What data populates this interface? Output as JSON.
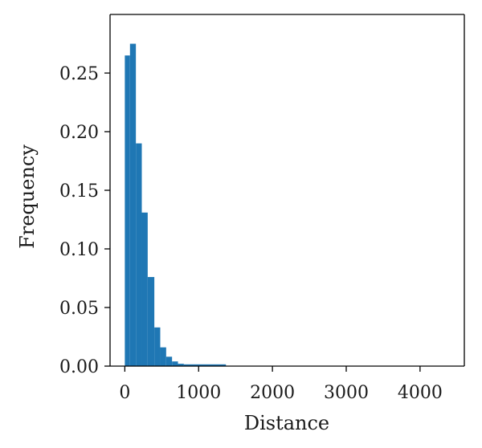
{
  "chart_data": {
    "type": "bar",
    "xlabel": "Distance",
    "ylabel": "Frequency",
    "xlim": [
      -200,
      4600
    ],
    "ylim": [
      0,
      0.3
    ],
    "x_ticks": [
      0,
      1000,
      2000,
      3000,
      4000
    ],
    "x_tick_labels": [
      "0",
      "1000",
      "2000",
      "3000",
      "4000"
    ],
    "y_ticks": [
      0.0,
      0.05,
      0.1,
      0.15,
      0.2,
      0.25
    ],
    "y_tick_labels": [
      "0.00",
      "0.05",
      "0.10",
      "0.15",
      "0.20",
      "0.25"
    ],
    "bar_color": "#1f77b4",
    "grid": false,
    "bins": [
      {
        "start": 0,
        "end": 70,
        "value": 0.265
      },
      {
        "start": 70,
        "end": 150,
        "value": 0.275
      },
      {
        "start": 150,
        "end": 230,
        "value": 0.19
      },
      {
        "start": 230,
        "end": 310,
        "value": 0.131
      },
      {
        "start": 310,
        "end": 400,
        "value": 0.076
      },
      {
        "start": 400,
        "end": 480,
        "value": 0.033
      },
      {
        "start": 480,
        "end": 560,
        "value": 0.016
      },
      {
        "start": 560,
        "end": 640,
        "value": 0.008
      },
      {
        "start": 640,
        "end": 720,
        "value": 0.004
      },
      {
        "start": 720,
        "end": 800,
        "value": 0.002
      },
      {
        "start": 800,
        "end": 1370,
        "value": 0.0015
      }
    ]
  }
}
